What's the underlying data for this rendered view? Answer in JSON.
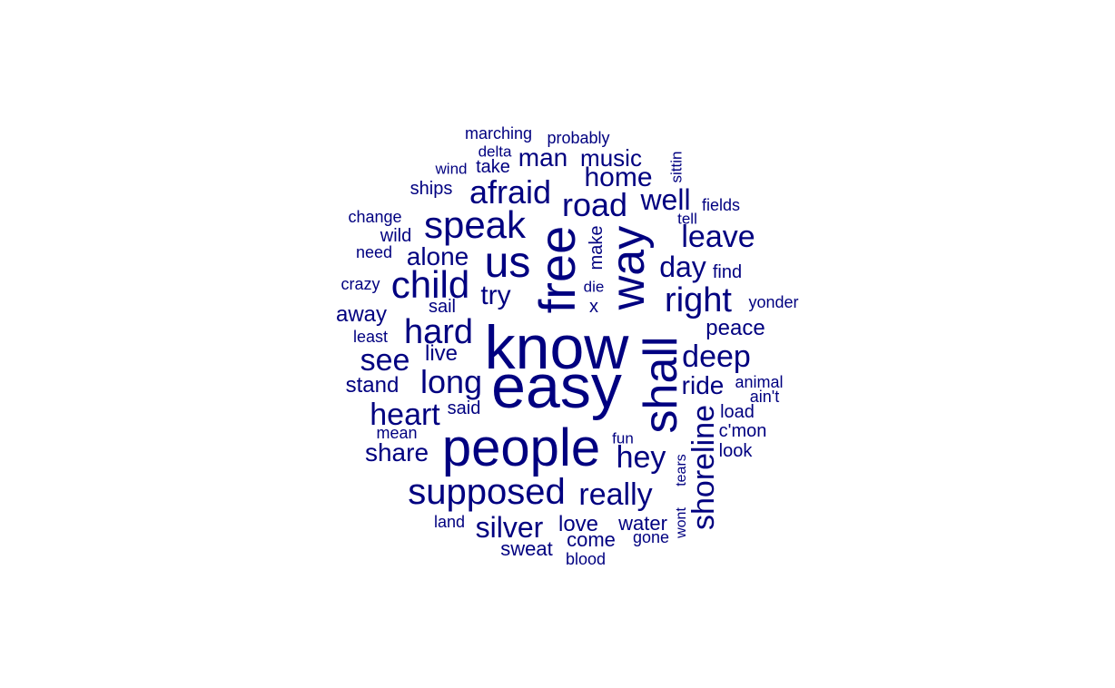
{
  "color": "#000080",
  "words": [
    {
      "text": "know"
    },
    {
      "text": "easy"
    },
    {
      "text": "people"
    },
    {
      "text": "free"
    },
    {
      "text": "shall"
    },
    {
      "text": "way"
    },
    {
      "text": "us"
    },
    {
      "text": "speak"
    },
    {
      "text": "child"
    },
    {
      "text": "supposed"
    },
    {
      "text": "hard"
    },
    {
      "text": "right"
    },
    {
      "text": "road"
    },
    {
      "text": "afraid"
    },
    {
      "text": "shoreline"
    },
    {
      "text": "long"
    },
    {
      "text": "heart"
    },
    {
      "text": "really"
    },
    {
      "text": "home"
    },
    {
      "text": "leave"
    },
    {
      "text": "deep"
    },
    {
      "text": "silver"
    },
    {
      "text": "see"
    },
    {
      "text": "hey"
    },
    {
      "text": "well"
    },
    {
      "text": "day"
    },
    {
      "text": "man"
    },
    {
      "text": "alone"
    },
    {
      "text": "share"
    },
    {
      "text": "try"
    },
    {
      "text": "music"
    },
    {
      "text": "ride"
    },
    {
      "text": "peace"
    },
    {
      "text": "stand"
    },
    {
      "text": "away"
    },
    {
      "text": "love"
    },
    {
      "text": "live"
    },
    {
      "text": "water"
    },
    {
      "text": "sweat"
    },
    {
      "text": "come"
    },
    {
      "text": "make"
    },
    {
      "text": "take"
    },
    {
      "text": "ships"
    },
    {
      "text": "find"
    },
    {
      "text": "c'mon"
    },
    {
      "text": "load"
    },
    {
      "text": "look"
    },
    {
      "text": "yonder"
    },
    {
      "text": "sail"
    },
    {
      "text": "said"
    },
    {
      "text": "wild"
    },
    {
      "text": "marching"
    },
    {
      "text": "probably"
    },
    {
      "text": "fields"
    },
    {
      "text": "change"
    },
    {
      "text": "need"
    },
    {
      "text": "crazy"
    },
    {
      "text": "least"
    },
    {
      "text": "mean"
    },
    {
      "text": "animal"
    },
    {
      "text": "ain't"
    },
    {
      "text": "land"
    },
    {
      "text": "gone"
    },
    {
      "text": "blood"
    },
    {
      "text": "delta"
    },
    {
      "text": "wind"
    },
    {
      "text": "sittin"
    },
    {
      "text": "tell"
    },
    {
      "text": "die"
    },
    {
      "text": "x"
    },
    {
      "text": "fun"
    },
    {
      "text": "tears"
    },
    {
      "text": "wont"
    }
  ]
}
